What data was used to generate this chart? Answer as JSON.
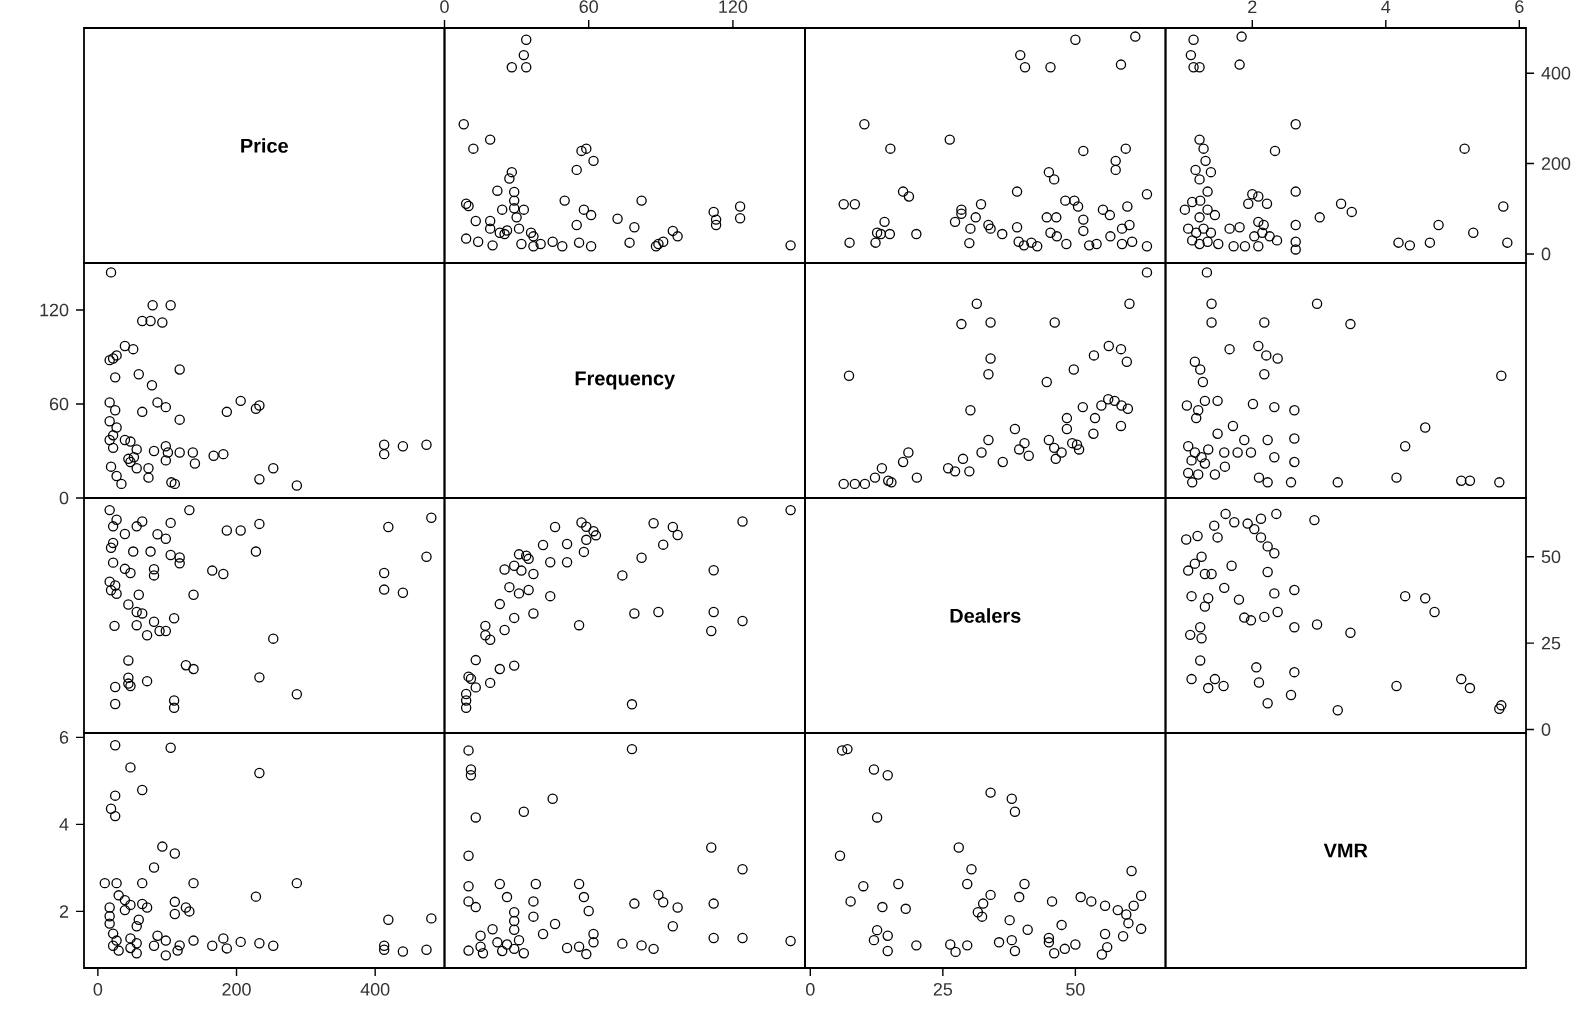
{
  "chart_data": [
    {
      "type": "other",
      "title": "Price"
    },
    {
      "type": "scatter",
      "color": "#000000",
      "marker": "circle",
      "xlim": [
        0,
        150
      ],
      "ylim": [
        -20,
        500
      ],
      "xticks": [
        0,
        60,
        120
      ],
      "tick_labels": "x",
      "x": [
        34,
        33,
        28,
        34,
        8,
        12,
        19,
        22,
        24,
        27,
        28,
        29,
        29,
        29,
        33,
        30,
        9,
        10,
        13,
        19,
        19,
        25,
        26,
        31,
        36,
        37,
        9,
        14,
        20,
        23,
        32,
        37,
        40,
        45,
        49,
        55,
        57,
        59,
        62,
        50,
        58,
        61,
        55,
        56,
        61,
        72,
        77,
        79,
        82,
        88,
        89,
        91,
        95,
        97,
        112,
        113,
        113,
        123,
        123,
        144
      ],
      "values": [
        474,
        440,
        413,
        413,
        287,
        233,
        253,
        140,
        98,
        167,
        181,
        137,
        118,
        101,
        98,
        81,
        111,
        106,
        73,
        73,
        56,
        44,
        52,
        56,
        47,
        39,
        34,
        27,
        19,
        47,
        22,
        17,
        22,
        27,
        17,
        186,
        228,
        233,
        206,
        118,
        98,
        86,
        64,
        25,
        17,
        78,
        25,
        59,
        118,
        17,
        22,
        27,
        51,
        39,
        93,
        76,
        64,
        105,
        79,
        19
      ]
    },
    {
      "type": "scatter",
      "color": "#000000",
      "marker": "circle",
      "xlim": [
        -1,
        67
      ],
      "ylim": [
        -20,
        500
      ],
      "tick_labels": false,
      "x": [
        10.2,
        6.3,
        8.4,
        7.4,
        12.3,
        13.3,
        14,
        15,
        12.6,
        15.1,
        17.5,
        18.6,
        20,
        26.3,
        27.3,
        28.5,
        28.5,
        30,
        30.2,
        31.2,
        32.2,
        33.6,
        34,
        36.2,
        39,
        39,
        39.6,
        40.5,
        39.3,
        40.3,
        41.7,
        42.8,
        44.6,
        46.4,
        45,
        46,
        45.3,
        45.3,
        46.5,
        48.3,
        48.1,
        49.8,
        50,
        50.5,
        51.5,
        51.5,
        51.5,
        52.6,
        54,
        55.2,
        56.5,
        57.6,
        57.6,
        56.6,
        58.6,
        59.5,
        59.8,
        58.8,
        60.2,
        58.8,
        60.7,
        61.3,
        63.5,
        63.5
      ],
      "values": [
        287,
        110,
        110,
        25,
        25,
        44,
        71,
        44,
        47,
        233,
        138,
        127,
        44,
        253,
        71,
        98,
        89,
        24,
        56,
        81,
        110,
        64,
        56,
        44,
        138,
        59,
        440,
        413,
        27,
        19,
        25,
        17,
        81,
        81,
        181,
        165,
        413,
        47,
        39,
        22,
        118,
        118,
        474,
        105,
        76,
        51,
        228,
        19,
        22,
        98,
        86,
        206,
        186,
        39,
        419,
        233,
        105,
        56,
        64,
        22,
        27,
        481,
        132,
        17
      ]
    },
    {
      "type": "scatter",
      "color": "#000000",
      "marker": "circle",
      "xlim": [
        0.7,
        6.1
      ],
      "ylim": [
        -20,
        500
      ],
      "xticks": [
        2,
        4,
        6
      ],
      "yticks": [
        0,
        200,
        400
      ],
      "x": [
        1.12,
        1.08,
        1.12,
        1.21,
        1.84,
        1.81,
        1.21,
        1.27,
        1.3,
        1.38,
        1.15,
        1.21,
        1.33,
        0.99,
        1.1,
        1.22,
        1.21,
        1.33,
        1.44,
        1.04,
        1.16,
        1.27,
        1.38,
        1.1,
        1.21,
        1.33,
        1.49,
        1.66,
        1.81,
        1.72,
        1.89,
        2,
        2.09,
        1.94,
        2.22,
        2.09,
        2.17,
        2.03,
        2.15,
        2.26,
        2.37,
        2.09,
        2.34,
        2.65,
        2.65,
        2.65,
        2.65,
        2.65,
        3.01,
        3.33,
        3.49,
        4.19,
        4.36,
        4.66,
        4.79,
        5.18,
        5.31,
        5.76,
        5.82
      ],
      "values": [
        474,
        440,
        413,
        413,
        481,
        419,
        253,
        233,
        206,
        181,
        186,
        165,
        138,
        98,
        115,
        118,
        81,
        98,
        86,
        56,
        47,
        56,
        47,
        30,
        22,
        27,
        22,
        56,
        59,
        17,
        17,
        132,
        127,
        111,
        111,
        71,
        64,
        39,
        47,
        39,
        30,
        17,
        228,
        287,
        138,
        64,
        27,
        10,
        81,
        111,
        93,
        25,
        19,
        25,
        64,
        233,
        47,
        105,
        25
      ]
    },
    {
      "type": "scatter",
      "color": "#000000",
      "marker": "circle",
      "xlim": [
        -20,
        500
      ],
      "ylim": [
        0,
        150
      ],
      "yticks": [
        0,
        60,
        120
      ],
      "tick_labels": "y",
      "x": [
        474,
        440,
        413,
        413,
        287,
        233,
        253,
        140,
        98,
        167,
        181,
        137,
        118,
        101,
        98,
        81,
        111,
        106,
        73,
        73,
        56,
        44,
        52,
        56,
        47,
        39,
        34,
        27,
        19,
        47,
        22,
        17,
        22,
        27,
        17,
        186,
        228,
        233,
        206,
        118,
        98,
        86,
        64,
        25,
        17,
        78,
        25,
        59,
        118,
        17,
        22,
        27,
        51,
        39,
        93,
        76,
        64,
        105,
        79,
        19
      ],
      "values": [
        34,
        33,
        28,
        34,
        8,
        12,
        19,
        22,
        24,
        27,
        28,
        29,
        29,
        29,
        33,
        30,
        9,
        10,
        13,
        19,
        19,
        25,
        26,
        31,
        36,
        37,
        9,
        14,
        20,
        23,
        32,
        37,
        40,
        45,
        49,
        55,
        57,
        59,
        62,
        50,
        58,
        61,
        55,
        56,
        61,
        72,
        77,
        79,
        82,
        88,
        89,
        91,
        95,
        97,
        112,
        113,
        113,
        123,
        123,
        144
      ]
    },
    {
      "type": "other",
      "title": "Frequency"
    },
    {
      "type": "scatter",
      "color": "#000000",
      "marker": "circle",
      "xlim": [
        -1,
        67
      ],
      "ylim": [
        0,
        150
      ],
      "tick_labels": false,
      "x": [
        63.5,
        60.2,
        31.4,
        28.5,
        34,
        46.1,
        7.3,
        34,
        33.6,
        44.6,
        49.7,
        53.5,
        56.3,
        58.6,
        59.7,
        30.2,
        38.6,
        51.4,
        53.7,
        54.9,
        56.2,
        57.4,
        58.7,
        59.9,
        58.6,
        48.4,
        48.4,
        53.4,
        33.6,
        32.3,
        36.3,
        39.4,
        40.4,
        41.2,
        45,
        46,
        46.3,
        47.4,
        49.4,
        50.7,
        50.3,
        26,
        27.3,
        28.8,
        30,
        17.5,
        18.5,
        20.1,
        13.5,
        12.2,
        14.7,
        15.3,
        6.3,
        8.4,
        10.3
      ],
      "values": [
        144,
        124,
        124,
        111,
        112,
        112,
        78,
        89,
        79,
        74,
        82,
        91,
        97,
        95,
        87,
        56,
        44,
        58,
        51,
        59,
        63,
        62,
        59,
        57,
        46,
        51,
        44,
        41,
        37,
        29,
        23,
        31,
        35,
        27,
        37,
        32,
        25,
        29,
        35,
        31,
        34,
        19,
        17,
        25,
        17,
        23,
        29,
        13,
        19,
        13,
        11,
        10,
        9,
        9,
        9
      ]
    },
    {
      "type": "scatter",
      "color": "#000000",
      "marker": "circle",
      "xlim": [
        0.7,
        6.1
      ],
      "ylim": [
        0,
        150
      ],
      "tick_labels": false,
      "x": [
        1.32,
        1.39,
        1.39,
        2.97,
        3.47,
        2.18,
        1.66,
        2.09,
        2.21,
        2.38,
        1.14,
        1.22,
        1.26,
        2.18,
        5.73,
        1.02,
        1.19,
        1.29,
        1.48,
        1.16,
        2.01,
        2.33,
        2.63,
        1.71,
        1.48,
        1.88,
        2.23,
        2.63,
        1.04,
        1.14,
        1.24,
        1.34,
        1.09,
        1.29,
        1.58,
        1.78,
        1.98,
        2.33,
        2.63,
        1.04,
        1.19,
        1.44,
        1.59,
        1.1,
        2.1,
        2.23,
        2.58,
        3.28,
        4.16,
        4.29,
        4.59,
        5.13,
        5.26,
        5.7
      ],
      "values": [
        144,
        124,
        112,
        124,
        111,
        112,
        95,
        97,
        91,
        89,
        87,
        82,
        74,
        79,
        78,
        59,
        56,
        62,
        62,
        51,
        60,
        58,
        56,
        46,
        41,
        37,
        37,
        38,
        33,
        29,
        26,
        31,
        24,
        22,
        29,
        29,
        29,
        26,
        23,
        16,
        15,
        15,
        20,
        10,
        13,
        10,
        10,
        10,
        13,
        33,
        45,
        11,
        11,
        10
      ]
    },
    {
      "type": "scatter",
      "color": "#000000",
      "marker": "circle",
      "xlim": [
        -20,
        500
      ],
      "ylim": [
        -1,
        67
      ],
      "tick_labels": false,
      "x": [
        287,
        110,
        110,
        25,
        25,
        44,
        71,
        44,
        47,
        233,
        138,
        127,
        44,
        253,
        71,
        98,
        89,
        24,
        56,
        81,
        110,
        64,
        56,
        44,
        138,
        59,
        440,
        413,
        27,
        19,
        25,
        17,
        81,
        81,
        181,
        165,
        413,
        47,
        39,
        22,
        118,
        118,
        474,
        105,
        76,
        51,
        228,
        19,
        22,
        98,
        86,
        206,
        186,
        39,
        419,
        233,
        105,
        56,
        64,
        22,
        27,
        481,
        132,
        17
      ],
      "values": [
        10.2,
        6.3,
        8.4,
        7.4,
        12.3,
        13.3,
        14,
        15,
        12.6,
        15.1,
        17.5,
        18.6,
        20,
        26.3,
        27.3,
        28.5,
        28.5,
        30,
        30.2,
        31.2,
        32.2,
        33.6,
        34,
        36.2,
        39,
        39,
        39.6,
        40.5,
        39.3,
        40.3,
        41.7,
        42.8,
        44.6,
        46.4,
        45,
        46,
        45.3,
        45.3,
        46.5,
        48.3,
        48.1,
        49.8,
        50,
        50.5,
        51.5,
        51.5,
        51.5,
        52.6,
        54,
        55.2,
        56.5,
        57.6,
        57.6,
        56.6,
        58.6,
        59.5,
        59.8,
        58.8,
        60.2,
        58.8,
        60.7,
        61.3,
        63.5,
        63.5
      ]
    },
    {
      "type": "scatter",
      "color": "#000000",
      "marker": "circle",
      "xlim": [
        0,
        150
      ],
      "ylim": [
        -1,
        67
      ],
      "tick_labels": false,
      "x": [
        144,
        124,
        124,
        111,
        112,
        112,
        78,
        89,
        79,
        74,
        82,
        91,
        97,
        95,
        87,
        56,
        44,
        58,
        51,
        59,
        63,
        62,
        59,
        57,
        46,
        51,
        44,
        41,
        37,
        29,
        23,
        31,
        35,
        27,
        37,
        32,
        25,
        29,
        35,
        31,
        34,
        19,
        17,
        25,
        17,
        23,
        29,
        13,
        19,
        13,
        11,
        10,
        9,
        9,
        9
      ],
      "values": [
        63.5,
        60.2,
        31.4,
        28.5,
        34,
        46.1,
        7.3,
        34,
        33.6,
        44.6,
        49.7,
        53.5,
        56.3,
        58.6,
        59.7,
        30.2,
        38.6,
        51.4,
        53.7,
        54.9,
        56.2,
        57.4,
        58.7,
        59.9,
        58.6,
        48.4,
        48.4,
        53.4,
        33.6,
        32.3,
        36.3,
        39.4,
        40.4,
        41.2,
        45,
        46,
        46.3,
        47.4,
        49.4,
        50.7,
        50.3,
        26,
        27.3,
        28.8,
        30,
        17.5,
        18.5,
        20.1,
        13.5,
        12.2,
        14.7,
        15.3,
        6.3,
        8.4,
        10.3
      ]
    },
    {
      "type": "other",
      "title": "Dealers"
    },
    {
      "type": "scatter",
      "color": "#000000",
      "marker": "circle",
      "xlim": [
        0.7,
        6.1
      ],
      "ylim": [
        -1,
        67
      ],
      "yticks": [
        0,
        25,
        50
      ],
      "tick_labels": "y",
      "x": [
        1.6,
        1.43,
        1.73,
        1.93,
        2.13,
        2.36,
        2.93,
        1.01,
        1.18,
        1.48,
        2.03,
        2.13,
        2.23,
        2.33,
        1.04,
        1.14,
        1.24,
        1.29,
        1.39,
        1.69,
        2.23,
        1.09,
        1.34,
        1.29,
        1.58,
        1.8,
        2.33,
        2.63,
        1.88,
        1.98,
        2.18,
        2.38,
        2.63,
        2.97,
        3.47,
        1.07,
        1.22,
        1.24,
        4.29,
        4.59,
        4.73,
        1.22,
        1.09,
        1.44,
        1.34,
        1.57,
        2.06,
        2.1,
        2.63,
        2.58,
        2.23,
        3.28,
        4.16,
        5.13,
        5.26,
        5.7,
        5.73
      ],
      "values": [
        62.4,
        59,
        60,
        59.6,
        61,
        62.4,
        60.6,
        55,
        56,
        55.6,
        58,
        55.6,
        53,
        51,
        46,
        48,
        50,
        45,
        45,
        47.4,
        45.6,
        38.6,
        38,
        35.6,
        41,
        37.6,
        39.4,
        40.4,
        32.4,
        31.6,
        32.6,
        34,
        29.6,
        30.4,
        28,
        27.4,
        29.6,
        26.4,
        38.6,
        38,
        34,
        20,
        14.6,
        14.6,
        12,
        12.6,
        18,
        13.6,
        16.6,
        10,
        7.6,
        5.6,
        12.6,
        14.6,
        12,
        6,
        7
      ]
    },
    {
      "type": "scatter",
      "color": "#000000",
      "marker": "circle",
      "xlim": [
        -20,
        500
      ],
      "ylim": [
        0.7,
        6.1
      ],
      "xticks": [
        0,
        200,
        400
      ],
      "yticks": [
        2,
        4,
        6
      ],
      "x": [
        474,
        440,
        413,
        413,
        481,
        419,
        253,
        233,
        206,
        181,
        186,
        165,
        138,
        98,
        115,
        118,
        81,
        98,
        86,
        56,
        47,
        56,
        47,
        30,
        22,
        27,
        22,
        56,
        59,
        17,
        17,
        132,
        127,
        111,
        111,
        71,
        64,
        39,
        47,
        39,
        30,
        17,
        228,
        287,
        138,
        64,
        27,
        10,
        81,
        111,
        93,
        25,
        19,
        25,
        64,
        233,
        47,
        105,
        25
      ],
      "values": [
        1.12,
        1.08,
        1.12,
        1.21,
        1.84,
        1.81,
        1.21,
        1.27,
        1.3,
        1.38,
        1.15,
        1.21,
        1.33,
        0.99,
        1.1,
        1.22,
        1.21,
        1.33,
        1.44,
        1.04,
        1.16,
        1.27,
        1.38,
        1.1,
        1.21,
        1.33,
        1.49,
        1.66,
        1.81,
        1.72,
        1.89,
        2,
        2.09,
        1.94,
        2.22,
        2.09,
        2.17,
        2.03,
        2.15,
        2.26,
        2.37,
        2.09,
        2.34,
        2.65,
        2.65,
        2.65,
        2.65,
        2.65,
        3.01,
        3.33,
        3.49,
        4.19,
        4.36,
        4.66,
        4.79,
        5.18,
        5.31,
        5.76,
        5.82
      ]
    },
    {
      "type": "scatter",
      "color": "#000000",
      "marker": "circle",
      "xlim": [
        0,
        150
      ],
      "ylim": [
        0.7,
        6.1
      ],
      "tick_labels": false,
      "x": [
        144,
        124,
        112,
        124,
        111,
        112,
        95,
        97,
        91,
        89,
        87,
        82,
        74,
        79,
        78,
        59,
        56,
        62,
        62,
        51,
        60,
        58,
        56,
        46,
        41,
        37,
        37,
        38,
        33,
        29,
        26,
        31,
        24,
        22,
        29,
        29,
        29,
        26,
        23,
        16,
        15,
        15,
        20,
        10,
        13,
        10,
        10,
        10,
        13,
        33,
        45,
        11,
        11,
        10
      ],
      "values": [
        1.32,
        1.39,
        1.39,
        2.97,
        3.47,
        2.18,
        1.66,
        2.09,
        2.21,
        2.38,
        1.14,
        1.22,
        1.26,
        2.18,
        5.73,
        1.02,
        1.19,
        1.29,
        1.48,
        1.16,
        2.01,
        2.33,
        2.63,
        1.71,
        1.48,
        1.88,
        2.23,
        2.63,
        1.04,
        1.14,
        1.24,
        1.34,
        1.09,
        1.29,
        1.58,
        1.78,
        1.98,
        2.33,
        2.63,
        1.04,
        1.19,
        1.44,
        1.59,
        1.1,
        2.1,
        2.23,
        2.58,
        3.28,
        4.16,
        4.29,
        4.59,
        5.13,
        5.26,
        5.7
      ]
    },
    {
      "type": "scatter",
      "color": "#000000",
      "marker": "circle",
      "xlim": [
        -1,
        67
      ],
      "ylim": [
        0.7,
        6.1
      ],
      "xticks": [
        0,
        25,
        50
      ],
      "tick_labels": "x",
      "x": [
        62.4,
        59,
        60,
        59.6,
        61,
        62.4,
        60.6,
        55,
        56,
        55.6,
        58,
        55.6,
        53,
        51,
        46,
        48,
        50,
        45,
        45,
        47.4,
        45.6,
        38.6,
        38,
        35.6,
        41,
        37.6,
        39.4,
        40.4,
        32.4,
        31.6,
        32.6,
        34,
        29.6,
        30.4,
        28,
        27.4,
        29.6,
        26.4,
        38.6,
        38,
        34,
        20,
        14.6,
        14.6,
        12,
        12.6,
        18,
        13.6,
        16.6,
        10,
        7.6,
        5.6,
        12.6,
        14.6,
        12,
        6,
        7
      ],
      "values": [
        1.6,
        1.43,
        1.73,
        1.93,
        2.13,
        2.36,
        2.93,
        1.01,
        1.18,
        1.48,
        2.03,
        2.13,
        2.23,
        2.33,
        1.04,
        1.14,
        1.24,
        1.29,
        1.39,
        1.69,
        2.23,
        1.09,
        1.34,
        1.29,
        1.58,
        1.8,
        2.33,
        2.63,
        1.88,
        1.98,
        2.18,
        2.38,
        2.63,
        2.97,
        3.47,
        1.07,
        1.22,
        1.24,
        4.29,
        4.59,
        4.73,
        1.22,
        1.09,
        1.44,
        1.34,
        1.57,
        2.06,
        2.1,
        2.63,
        2.58,
        2.23,
        3.28,
        4.16,
        5.13,
        5.26,
        5.7,
        5.73
      ]
    },
    {
      "type": "other",
      "title": "VMR"
    }
  ]
}
